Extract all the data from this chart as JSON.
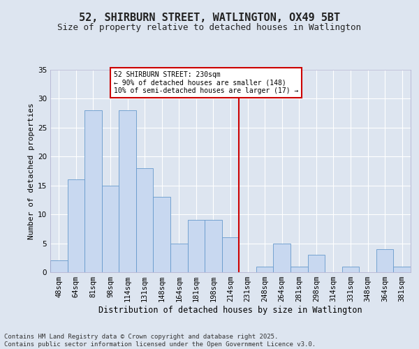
{
  "title": "52, SHIRBURN STREET, WATLINGTON, OX49 5BT",
  "subtitle": "Size of property relative to detached houses in Watlington",
  "xlabel": "Distribution of detached houses by size in Watlington",
  "ylabel": "Number of detached properties",
  "footer": "Contains HM Land Registry data © Crown copyright and database right 2025.\nContains public sector information licensed under the Open Government Licence v3.0.",
  "categories": [
    "48sqm",
    "64sqm",
    "81sqm",
    "98sqm",
    "114sqm",
    "131sqm",
    "148sqm",
    "164sqm",
    "181sqm",
    "198sqm",
    "214sqm",
    "231sqm",
    "248sqm",
    "264sqm",
    "281sqm",
    "298sqm",
    "314sqm",
    "331sqm",
    "348sqm",
    "364sqm",
    "381sqm"
  ],
  "values": [
    2,
    16,
    28,
    15,
    28,
    18,
    13,
    5,
    9,
    9,
    6,
    0,
    1,
    5,
    1,
    3,
    0,
    1,
    0,
    4,
    1
  ],
  "bar_color": "#c8d8f0",
  "bar_edge_color": "#6699cc",
  "vline_color": "#cc0000",
  "annotation_text": "52 SHIRBURN STREET: 230sqm\n← 90% of detached houses are smaller (148)\n10% of semi-detached houses are larger (17) →",
  "annotation_box_color": "#ffffff",
  "annotation_box_edge": "#cc0000",
  "ylim": [
    0,
    35
  ],
  "yticks": [
    0,
    5,
    10,
    15,
    20,
    25,
    30,
    35
  ],
  "background_color": "#dde5f0",
  "grid_color": "#ffffff",
  "title_fontsize": 11,
  "subtitle_fontsize": 9,
  "xlabel_fontsize": 8.5,
  "ylabel_fontsize": 8,
  "tick_fontsize": 7.5,
  "footer_fontsize": 6.5,
  "vline_pos": 10.5
}
